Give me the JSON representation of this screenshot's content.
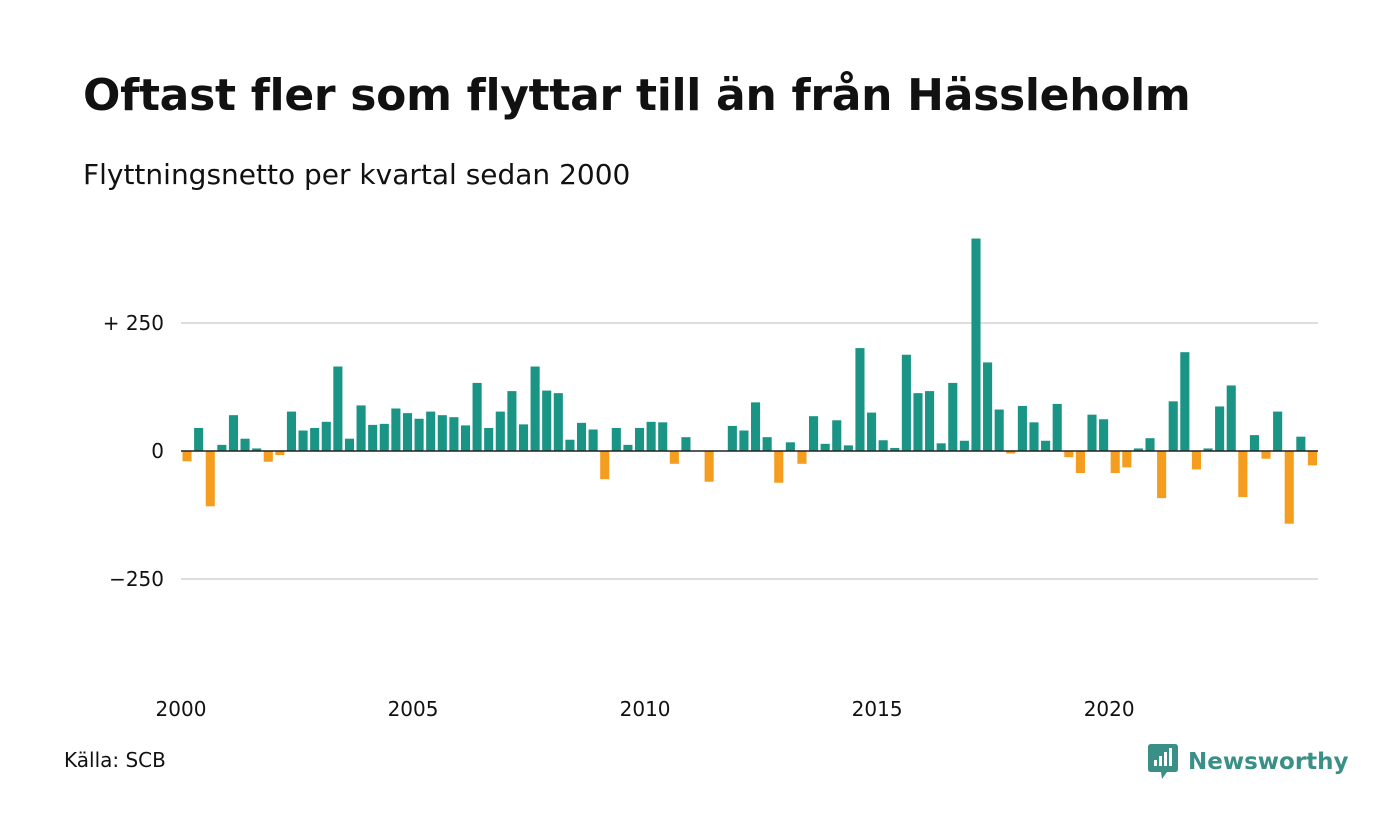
{
  "title": "Oftast fler som flyttar till än från Hässleholm",
  "subtitle": "Flyttningsnetto per kvartal sedan 2000",
  "source": "Källa: SCB",
  "brand": "Newsworthy",
  "colors": {
    "positive": "#1a9484",
    "negative": "#f59d1f",
    "grid": "#dddddd",
    "zero": "#222222",
    "brand": "#3a8f87"
  },
  "chart_data": {
    "type": "bar",
    "grid": true,
    "ylim": [
      -360,
      430
    ],
    "xlim": [
      2000,
      2024.5
    ],
    "yticks": [
      {
        "value": 250,
        "label": "+ 250"
      },
      {
        "value": 0,
        "label": "0"
      },
      {
        "value": -250,
        "label": "−250"
      }
    ],
    "xticks": [
      {
        "value": 2000,
        "label": "2000"
      },
      {
        "value": 2005,
        "label": "2005"
      },
      {
        "value": 2010,
        "label": "2010"
      },
      {
        "value": 2015,
        "label": "2015"
      },
      {
        "value": 2020,
        "label": "2020"
      }
    ],
    "series": [
      {
        "values": [
          -20,
          45,
          -108,
          12,
          70,
          24,
          5,
          -21,
          -8,
          77,
          40,
          45,
          57,
          165,
          24,
          89,
          51,
          53,
          83,
          74,
          63,
          77,
          70,
          66,
          50,
          133,
          45,
          77,
          117,
          52,
          165,
          118,
          113,
          22,
          55,
          42,
          -55,
          45,
          12,
          45,
          57,
          56,
          -25,
          27,
          0,
          -60,
          0,
          49,
          40,
          95,
          27,
          -62,
          17,
          -25,
          68,
          14,
          60,
          11,
          201,
          75,
          21,
          6,
          188,
          113,
          117,
          15,
          133,
          20,
          415,
          173,
          81,
          -5,
          88,
          56,
          20,
          92,
          -12,
          -43,
          71,
          62,
          -43,
          -32,
          5,
          25,
          -92,
          97,
          193,
          -36,
          5,
          87,
          128,
          -90,
          31,
          -15,
          77,
          -142,
          28,
          -28
        ]
      }
    ]
  }
}
